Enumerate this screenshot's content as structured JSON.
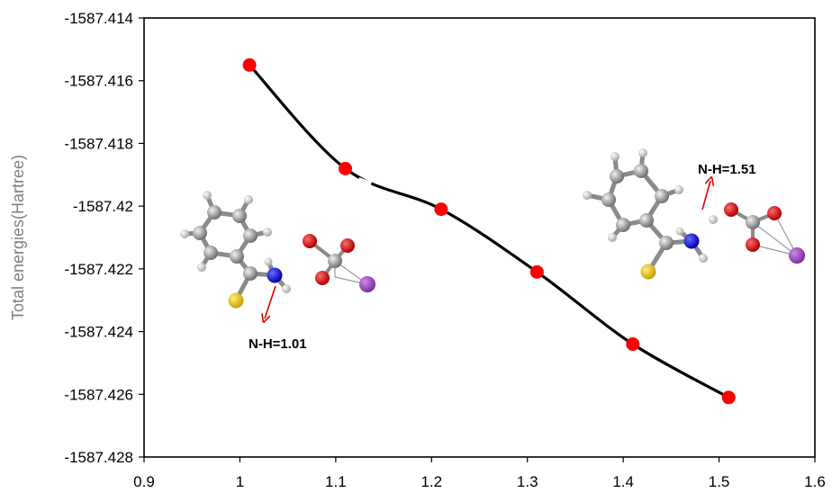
{
  "chart_data": {
    "type": "scatter",
    "title": "",
    "xlabel": "",
    "ylabel": "Total  energies(Hartree)",
    "xlim": [
      0.9,
      1.6
    ],
    "ylim": [
      -1587.428,
      -1587.414
    ],
    "x_ticks": [
      "0.9",
      "1",
      "1.1",
      "1.2",
      "1.3",
      "1.4",
      "1.5",
      "1.6"
    ],
    "y_ticks": [
      "-1587.414",
      "-1587.416",
      "-1587.418",
      "-1587.42",
      "-1587.422",
      "-1587.424",
      "-1587.426",
      "-1587.428"
    ],
    "grid": false,
    "smooth_line": true,
    "series": [
      {
        "x": [
          1.01,
          1.11,
          1.21,
          1.31,
          1.41,
          1.51
        ],
        "y": [
          -1587.4155,
          -1587.4188,
          -1587.4201,
          -1587.4221,
          -1587.4244,
          -1587.4261
        ],
        "marker_color": "#ff0000",
        "line_color": "#000000"
      }
    ],
    "annotations": [
      {
        "text": "N-H=1.01",
        "near_x": 1.01
      },
      {
        "text": "N-H=1.51",
        "near_x": 1.51
      }
    ]
  }
}
